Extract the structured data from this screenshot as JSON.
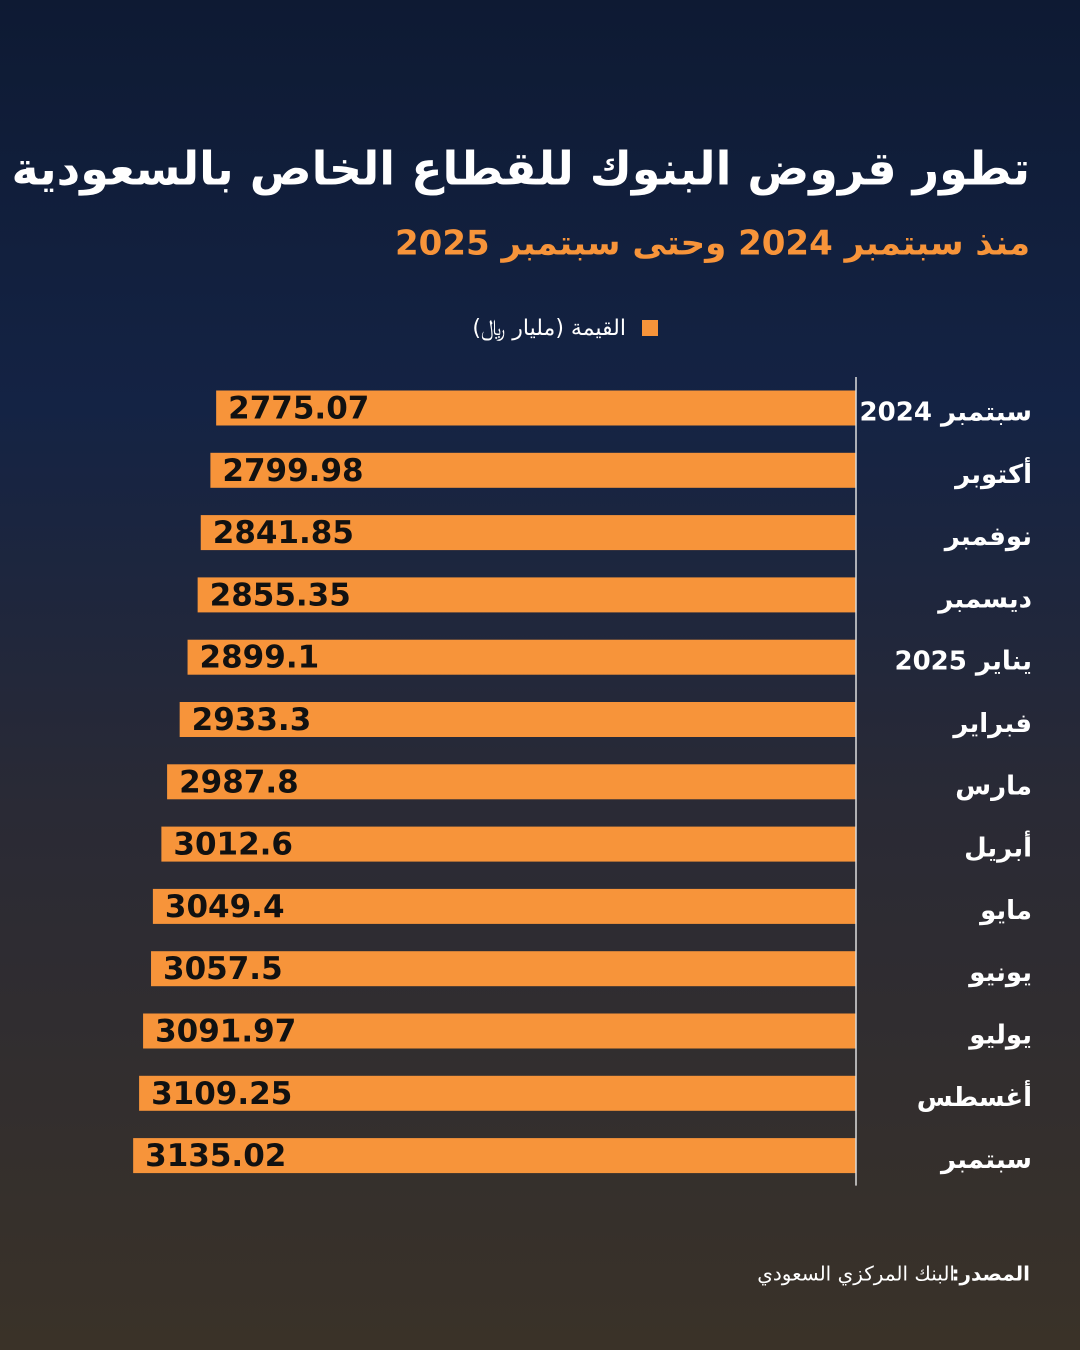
{
  "chart_data": {
    "type": "hbar",
    "title": "تطور قروض البنوك للقطاع الخاص بالسعودية",
    "subtitle": "منذ سبتمبر 2024 وحتى سبتمبر 2025",
    "categories": [
      "سبتمبر 2024",
      "أكتوبر",
      "نوفمبر",
      "ديسمبر",
      "يناير 2025",
      "فبراير",
      "مارس",
      "أبريل",
      "مايو",
      "يونيو",
      "يوليو",
      "أغسطس",
      "سبتمبر"
    ],
    "series": [
      {
        "name": "القيمة (مليار ﷼)",
        "color": "#f7943a",
        "values": [
          2775.07,
          2799.98,
          2841.85,
          2855.35,
          2899.1,
          2933.3,
          2987.8,
          3012.6,
          3049.4,
          3057.5,
          3091.97,
          3109.25,
          3135.02
        ]
      }
    ],
    "xlim": [
      0,
      3500
    ]
  },
  "source": {
    "label": "المصدر:",
    "text": "البنك المركزي السعودي"
  }
}
